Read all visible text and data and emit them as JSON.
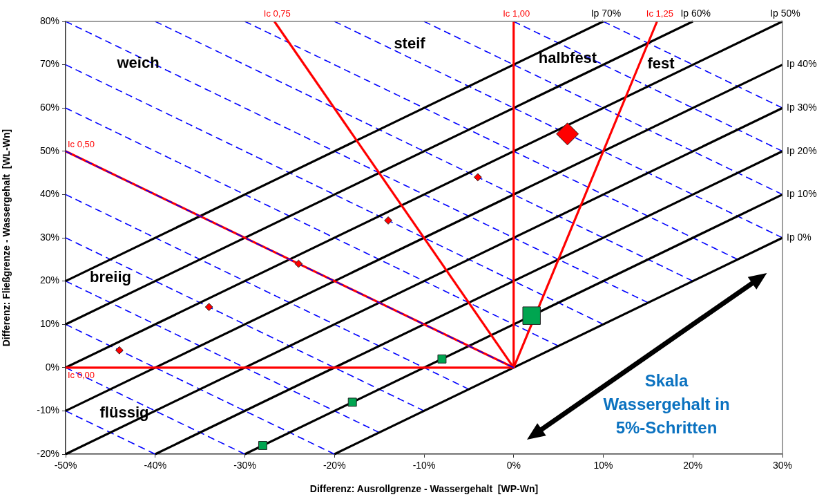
{
  "chart_data": {
    "type": "line",
    "xlabel": "Differenz: Ausrollgrenze - Wassergehalt  [WP-Wn]",
    "ylabel": "Differenz: Fließgrenze - Wassergehalt  [WL-Wn]",
    "xlim": [
      -50,
      30
    ],
    "ylim": [
      -20,
      80
    ],
    "xticks": [
      {
        "value": -50,
        "label": "-50%"
      },
      {
        "value": -40,
        "label": "-40%"
      },
      {
        "value": -30,
        "label": "-30%"
      },
      {
        "value": -20,
        "label": "-20%"
      },
      {
        "value": -10,
        "label": "-10%"
      },
      {
        "value": 0,
        "label": "0%"
      },
      {
        "value": 10,
        "label": "10%"
      },
      {
        "value": 20,
        "label": "20%"
      },
      {
        "value": 30,
        "label": "30%"
      }
    ],
    "yticks": [
      {
        "value": -20,
        "label": "-20%"
      },
      {
        "value": -10,
        "label": "-10%"
      },
      {
        "value": 0,
        "label": "0%"
      },
      {
        "value": 10,
        "label": "10%"
      },
      {
        "value": 20,
        "label": "20%"
      },
      {
        "value": 30,
        "label": "30%"
      },
      {
        "value": 40,
        "label": "40%"
      },
      {
        "value": 50,
        "label": "50%"
      },
      {
        "value": 60,
        "label": "60%"
      },
      {
        "value": 70,
        "label": "70%"
      },
      {
        "value": 80,
        "label": "80%"
      }
    ],
    "grid": false,
    "legend": false,
    "marker": "none",
    "line_style": "solid",
    "series": [
      {
        "type": "line",
        "line_style": "dashed",
        "color": "#0000ff",
        "x": [
          -50,
          -40
        ],
        "values": [
          -10,
          -20
        ]
      },
      {
        "type": "line",
        "line_style": "dashed",
        "color": "#0000ff",
        "x": [
          -50,
          -30
        ],
        "values": [
          0,
          -20
        ]
      },
      {
        "type": "line",
        "line_style": "dashed",
        "color": "#0000ff",
        "x": [
          -50,
          -20
        ],
        "values": [
          10,
          -20
        ]
      },
      {
        "type": "line",
        "line_style": "dashed",
        "color": "#0000ff",
        "x": [
          -50,
          -15
        ],
        "values": [
          20,
          -15
        ]
      },
      {
        "type": "line",
        "line_style": "dashed",
        "color": "#0000ff",
        "x": [
          -50,
          -10
        ],
        "values": [
          30,
          -10
        ]
      },
      {
        "type": "line",
        "line_style": "dashed",
        "color": "#0000ff",
        "x": [
          -50,
          -5
        ],
        "values": [
          40,
          -5
        ]
      },
      {
        "type": "line",
        "line_style": "dashed",
        "color": "#0000ff",
        "x": [
          -50,
          5
        ],
        "values": [
          60,
          5
        ]
      },
      {
        "type": "line",
        "line_style": "dashed",
        "color": "#0000ff",
        "x": [
          -50,
          10
        ],
        "values": [
          70,
          10
        ]
      },
      {
        "type": "line",
        "line_style": "dashed",
        "color": "#0000ff",
        "x": [
          -50,
          15
        ],
        "values": [
          80,
          15
        ]
      },
      {
        "type": "line",
        "line_style": "dashed",
        "color": "#0000ff",
        "x": [
          -40,
          20
        ],
        "values": [
          80,
          20
        ]
      },
      {
        "type": "line",
        "line_style": "dashed",
        "color": "#0000ff",
        "x": [
          -30,
          25
        ],
        "values": [
          80,
          25
        ]
      },
      {
        "type": "line",
        "line_style": "dashed",
        "color": "#0000ff",
        "x": [
          -20,
          30
        ],
        "values": [
          80,
          30
        ]
      },
      {
        "type": "line",
        "line_style": "dashed",
        "color": "#0000ff",
        "x": [
          -10,
          30
        ],
        "values": [
          80,
          40
        ]
      },
      {
        "type": "line",
        "line_style": "dashed",
        "color": "#0000ff",
        "x": [
          0,
          30
        ],
        "values": [
          80,
          50
        ]
      },
      {
        "type": "line",
        "line_style": "dashed",
        "color": "#0000ff",
        "x": [
          10,
          30
        ],
        "values": [
          80,
          60
        ]
      },
      {
        "type": "line",
        "name": "Ip 0%",
        "color": "#000000",
        "x": [
          -20,
          30
        ],
        "values": [
          -20,
          30
        ]
      },
      {
        "type": "line",
        "name": "Ip 10%",
        "color": "#000000",
        "x": [
          -30,
          30
        ],
        "values": [
          -20,
          40
        ]
      },
      {
        "type": "line",
        "name": "Ip 20%",
        "color": "#000000",
        "x": [
          -40,
          30
        ],
        "values": [
          -20,
          50
        ]
      },
      {
        "type": "line",
        "name": "Ip 30%",
        "color": "#000000",
        "x": [
          -50,
          30
        ],
        "values": [
          -20,
          60
        ]
      },
      {
        "type": "line",
        "name": "Ip 40%",
        "color": "#000000",
        "x": [
          -50,
          30
        ],
        "values": [
          -10,
          70
        ]
      },
      {
        "type": "line",
        "name": "Ip 50%",
        "color": "#000000",
        "x": [
          -50,
          30
        ],
        "values": [
          0,
          80
        ]
      },
      {
        "type": "line",
        "name": "Ip 60%",
        "color": "#000000",
        "x": [
          -50,
          20
        ],
        "values": [
          10,
          80
        ]
      },
      {
        "type": "line",
        "name": "Ip 70%",
        "color": "#000000",
        "x": [
          -50,
          10
        ],
        "values": [
          20,
          80
        ]
      },
      {
        "type": "line",
        "name": "Ic 0,00",
        "color": "#ff0000",
        "x": [
          -50,
          0
        ],
        "values": [
          0,
          0
        ]
      },
      {
        "type": "line",
        "name": "Ic 0,50",
        "color": "#ff0000",
        "x": [
          -50,
          0
        ],
        "values": [
          50,
          0
        ]
      },
      {
        "type": "line",
        "name": "Ic 0,75",
        "color": "#ff0000",
        "x": [
          -26.7,
          0
        ],
        "values": [
          80,
          0
        ]
      },
      {
        "type": "line",
        "name": "Ic 1,00",
        "color": "#ff0000",
        "x": [
          0,
          0
        ],
        "values": [
          0,
          80
        ]
      },
      {
        "type": "line",
        "name": "Ic 1,25",
        "color": "#ff0000",
        "x": [
          0,
          16
        ],
        "values": [
          0,
          80
        ]
      },
      {
        "type": "line",
        "line_style": "dashed",
        "color": "#0000ff",
        "x": [
          -50,
          0
        ],
        "values": [
          50,
          0
        ]
      },
      {
        "type": "bubble",
        "marker": "diamond",
        "color": "#ff0000",
        "x": [
          -44,
          -34,
          -24,
          -14,
          -4,
          6
        ],
        "values": [
          4,
          14,
          24,
          34,
          44,
          54
        ],
        "sizes": [
          0.09,
          0.09,
          0.09,
          0.09,
          0.09,
          0.79
        ]
      },
      {
        "type": "bubble",
        "marker": "square",
        "color": "#00a550",
        "x": [
          -28,
          -18,
          -8,
          2
        ],
        "values": [
          -18,
          -8,
          2,
          12
        ],
        "sizes": [
          0.22,
          0.22,
          0.22,
          1
        ]
      }
    ],
    "annotations": [
      "weich",
      "steif",
      "halbfest",
      "fest",
      "breiig",
      "flüssig",
      "Skala\nWassergehalt in\n5%-Schritten"
    ]
  }
}
